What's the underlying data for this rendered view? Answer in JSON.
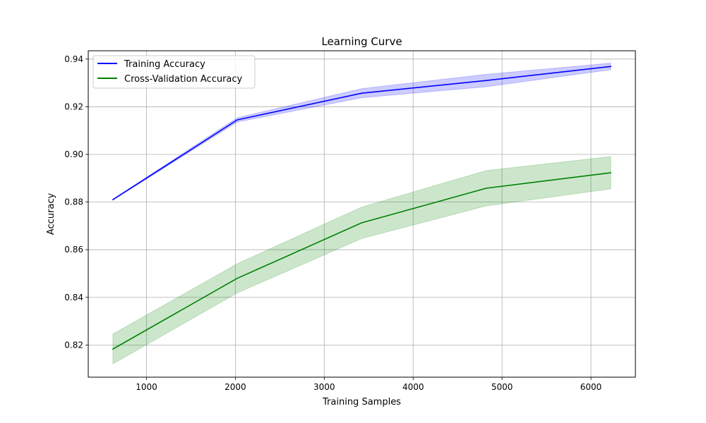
{
  "chart_data": {
    "type": "line",
    "title": "Learning Curve",
    "xlabel": "Training Samples",
    "ylabel": "Accuracy",
    "xlim": [
      345,
      6500
    ],
    "ylim": [
      0.8065,
      0.9435
    ],
    "x_ticks": [
      1000,
      2000,
      3000,
      4000,
      5000,
      6000
    ],
    "y_ticks": [
      0.82,
      0.84,
      0.86,
      0.88,
      0.9,
      0.92,
      0.94
    ],
    "y_tick_labels": [
      "0.82",
      "0.84",
      "0.86",
      "0.88",
      "0.90",
      "0.92",
      "0.94"
    ],
    "grid": true,
    "legend_position": "top-left",
    "x": [
      622,
      2022,
      3422,
      4822,
      6222
    ],
    "series": [
      {
        "name": "Training Accuracy",
        "color": "#0000ff",
        "fill_color": "#0000ff",
        "values": [
          0.881,
          0.9145,
          0.9257,
          0.931,
          0.9369
        ],
        "upper": [
          0.8812,
          0.9154,
          0.9276,
          0.9336,
          0.9383
        ],
        "lower": [
          0.8808,
          0.9136,
          0.9238,
          0.9284,
          0.9355
        ]
      },
      {
        "name": "Cross-Validation Accuracy",
        "color": "#008000",
        "fill_color": "#008000",
        "values": [
          0.8183,
          0.848,
          0.8713,
          0.8858,
          0.8923
        ],
        "upper": [
          0.8246,
          0.8541,
          0.8779,
          0.8932,
          0.8991
        ],
        "lower": [
          0.8121,
          0.8419,
          0.8647,
          0.8784,
          0.8855
        ]
      }
    ]
  }
}
